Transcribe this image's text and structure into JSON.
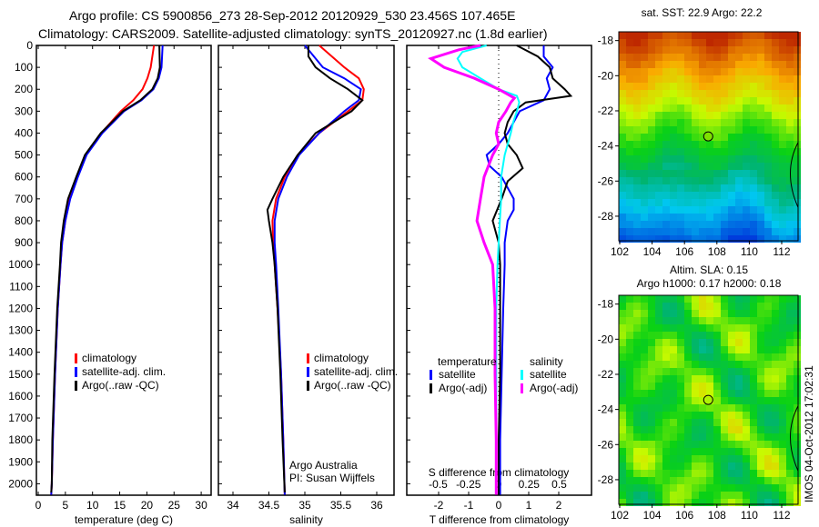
{
  "title": {
    "line1": "Argo profile: CS 5900856_273 28-Sep-2012 20120929_530 23.456S 107.465E",
    "line2": "Climatology: CARS2009. Satellite-adjusted climatology: synTS_20120927.nc (1.8d earlier)"
  },
  "chart_data": [
    {
      "type": "line",
      "name": "temperature-profile",
      "xlabel": "temperature (deg C)",
      "xlim": [
        -2,
        32
      ],
      "ylim": [
        2060,
        0
      ],
      "xticks": [
        0,
        5,
        10,
        15,
        20,
        25,
        30
      ],
      "yticks": [
        0,
        100,
        200,
        300,
        400,
        500,
        600,
        700,
        800,
        900,
        1000,
        1100,
        1200,
        1300,
        1400,
        1500,
        1600,
        1700,
        1800,
        1900,
        2000
      ],
      "legend": [
        "climatology",
        "satellite-adj. clim.",
        "Argo(..raw -QC)"
      ],
      "series": [
        {
          "name": "climatology",
          "color": "#ff0000",
          "depth": [
            0,
            100,
            150,
            200,
            250,
            300,
            400,
            500,
            600,
            700,
            800,
            900,
            1000,
            1200,
            1500,
            1800,
            2000,
            2050
          ],
          "values": [
            21.3,
            20.7,
            20.1,
            19.2,
            17.5,
            15.2,
            11.6,
            8.8,
            7.2,
            5.8,
            5.0,
            4.4,
            4.1,
            3.6,
            3.1,
            2.7,
            2.5,
            2.4
          ]
        },
        {
          "name": "satellite-adj. clim.",
          "color": "#0000ff",
          "depth": [
            0,
            100,
            150,
            200,
            250,
            300,
            400,
            500,
            600,
            700,
            800,
            900,
            1000,
            1200,
            1500,
            1800,
            2000,
            2050
          ],
          "values": [
            22.9,
            22.7,
            22.2,
            21.2,
            19.0,
            15.8,
            11.8,
            8.9,
            7.3,
            5.9,
            5.0,
            4.4,
            4.1,
            3.6,
            3.1,
            2.7,
            2.5,
            2.4
          ]
        },
        {
          "name": "Argo(..raw -QC)",
          "color": "#000000",
          "depth": [
            0,
            100,
            150,
            200,
            250,
            300,
            400,
            500,
            600,
            700,
            800,
            900,
            1000,
            1200,
            1500,
            1800,
            2000,
            2040
          ],
          "values": [
            22.3,
            22.4,
            22.0,
            21.0,
            18.8,
            15.6,
            11.5,
            8.6,
            7.0,
            5.5,
            4.7,
            4.2,
            4.0,
            3.5,
            3.0,
            2.6,
            2.5,
            2.4
          ]
        }
      ]
    },
    {
      "type": "line",
      "name": "salinity-profile",
      "xlabel": "salinity",
      "xlim": [
        33.8,
        36.2
      ],
      "ylim": [
        2060,
        0
      ],
      "xticks": [
        34,
        34.5,
        35,
        35.5,
        36
      ],
      "legend": [
        "climatology",
        "satellite-adj. clim.",
        "Argo(..raw -QC)"
      ],
      "annotation": [
        "Argo Australia",
        "PI: Susan Wijffels"
      ],
      "series": [
        {
          "name": "climatology",
          "color": "#ff0000",
          "depth": [
            0,
            100,
            150,
            200,
            250,
            300,
            400,
            500,
            600,
            700,
            800,
            900,
            1000,
            1200,
            1500,
            1800,
            2050
          ],
          "values": [
            35.2,
            35.55,
            35.75,
            35.82,
            35.8,
            35.6,
            35.2,
            34.9,
            34.72,
            34.6,
            34.55,
            34.56,
            34.58,
            34.62,
            34.67,
            34.7,
            34.72
          ]
        },
        {
          "name": "satellite-adj. clim.",
          "color": "#0000ff",
          "depth": [
            0,
            100,
            150,
            200,
            250,
            300,
            400,
            500,
            600,
            700,
            800,
            900,
            1000,
            1200,
            1500,
            1800,
            2050
          ],
          "values": [
            35.0,
            35.25,
            35.55,
            35.78,
            35.75,
            35.55,
            35.2,
            34.92,
            34.75,
            34.63,
            34.58,
            34.58,
            34.6,
            34.63,
            34.67,
            34.7,
            34.72
          ]
        },
        {
          "name": "Argo(..raw -QC)",
          "color": "#000000",
          "depth": [
            0,
            50,
            100,
            150,
            200,
            250,
            300,
            400,
            500,
            600,
            700,
            750,
            800,
            900,
            1000,
            1200,
            1500,
            1800,
            2040
          ],
          "values": [
            35.05,
            35.05,
            35.15,
            35.35,
            35.6,
            35.8,
            35.65,
            35.15,
            34.9,
            34.7,
            34.55,
            34.48,
            34.5,
            34.55,
            34.58,
            34.62,
            34.66,
            34.69,
            34.72
          ]
        }
      ]
    },
    {
      "type": "line",
      "name": "difference-profile",
      "xlabel": "T difference from climatology",
      "x2label": "S difference from climatology",
      "xlim": [
        -3,
        3
      ],
      "x2lim": [
        -0.75,
        0.75
      ],
      "ylim": [
        2060,
        0
      ],
      "xticks": [
        -2,
        -1,
        0,
        1,
        2
      ],
      "x2ticks": [
        -0.5,
        -0.25,
        0,
        0.25,
        0.5
      ],
      "legend_titles": [
        "temperature",
        "salinity"
      ],
      "legend": [
        "satellite",
        "Argo(-adj)",
        "satellite",
        "Argo(-adj)"
      ],
      "series": [
        {
          "name": "temperature satellite",
          "axis": "T",
          "color": "#0000ff",
          "depth": [
            0,
            50,
            100,
            150,
            200,
            250,
            300,
            350,
            400,
            450,
            500,
            550,
            600,
            700,
            750,
            800,
            900,
            1000,
            1200,
            1500,
            1800,
            2050
          ],
          "values": [
            1.5,
            1.5,
            1.8,
            1.6,
            1.7,
            1.5,
            0.7,
            0.5,
            0.3,
            0.0,
            -0.4,
            -0.3,
            0.1,
            0.5,
            0.5,
            0.3,
            0.2,
            0.2,
            0.15,
            0.1,
            0.05,
            0.05
          ]
        },
        {
          "name": "temperature Argo(-adj)",
          "axis": "T",
          "color": "#000000",
          "depth": [
            0,
            50,
            100,
            150,
            200,
            230,
            260,
            300,
            350,
            400,
            450,
            500,
            560,
            620,
            700,
            800,
            900,
            1000,
            1200,
            1500,
            1800,
            2050
          ],
          "values": [
            0.6,
            1.3,
            1.7,
            1.8,
            2.2,
            2.4,
            0.9,
            0.5,
            0.3,
            0.2,
            0.3,
            0.6,
            0.8,
            0.3,
            0.1,
            -0.2,
            0.0,
            0.05,
            0.05,
            0.05,
            0.0,
            0.0
          ]
        },
        {
          "name": "salinity satellite",
          "axis": "S",
          "color": "#00ffff",
          "depth": [
            0,
            30,
            60,
            100,
            150,
            200,
            230,
            260,
            300,
            350,
            400,
            500,
            600,
            700,
            800,
            900,
            1000,
            1200,
            1500,
            1800,
            2050
          ],
          "values": [
            -0.1,
            -0.3,
            -0.34,
            -0.3,
            -0.15,
            0.0,
            0.15,
            0.17,
            0.15,
            0.12,
            0.1,
            0.05,
            0.02,
            0.02,
            0.01,
            0.0,
            -0.01,
            -0.02,
            -0.02,
            -0.02,
            -0.02
          ]
        },
        {
          "name": "salinity Argo(-adj)",
          "axis": "S",
          "color": "#ff00ff",
          "depth": [
            0,
            20,
            60,
            100,
            150,
            200,
            240,
            260,
            300,
            350,
            400,
            450,
            500,
            600,
            700,
            800,
            900,
            1000,
            1200,
            1500,
            1800,
            2050
          ],
          "values": [
            -0.15,
            -0.33,
            -0.56,
            -0.45,
            -0.2,
            0.0,
            0.13,
            0.1,
            0.06,
            0.0,
            -0.02,
            0.0,
            -0.05,
            -0.12,
            -0.15,
            -0.18,
            -0.12,
            -0.05,
            -0.03,
            -0.03,
            -0.02,
            -0.02
          ]
        }
      ]
    },
    {
      "type": "heatmap",
      "name": "sst-map",
      "title": "sat. SST: 22.9 Argo: 22.2",
      "xticks": [
        102,
        104,
        106,
        108,
        110,
        112
      ],
      "yticks": [
        -18,
        -20,
        -22,
        -24,
        -26,
        -28
      ],
      "xlim": [
        101.9,
        113
      ],
      "ylim": [
        -29.4,
        -17.5
      ],
      "marker": {
        "lon": 107.465,
        "lat": -23.456
      }
    },
    {
      "type": "heatmap",
      "name": "sla-map",
      "title": "Altim. SLA: 0.15",
      "subtitle": "Argo h1000: 0.17 h2000: 0.18",
      "xticks": [
        102,
        104,
        106,
        108,
        110,
        112
      ],
      "yticks": [
        -18,
        -20,
        -22,
        -24,
        -26,
        -28
      ],
      "xlim": [
        101.9,
        113
      ],
      "ylim": [
        -29.4,
        -17.5
      ],
      "marker": {
        "lon": 107.465,
        "lat": -23.456
      }
    }
  ],
  "footer": {
    "stamp": "IMOS 04-Oct-2012 17:02:31"
  }
}
